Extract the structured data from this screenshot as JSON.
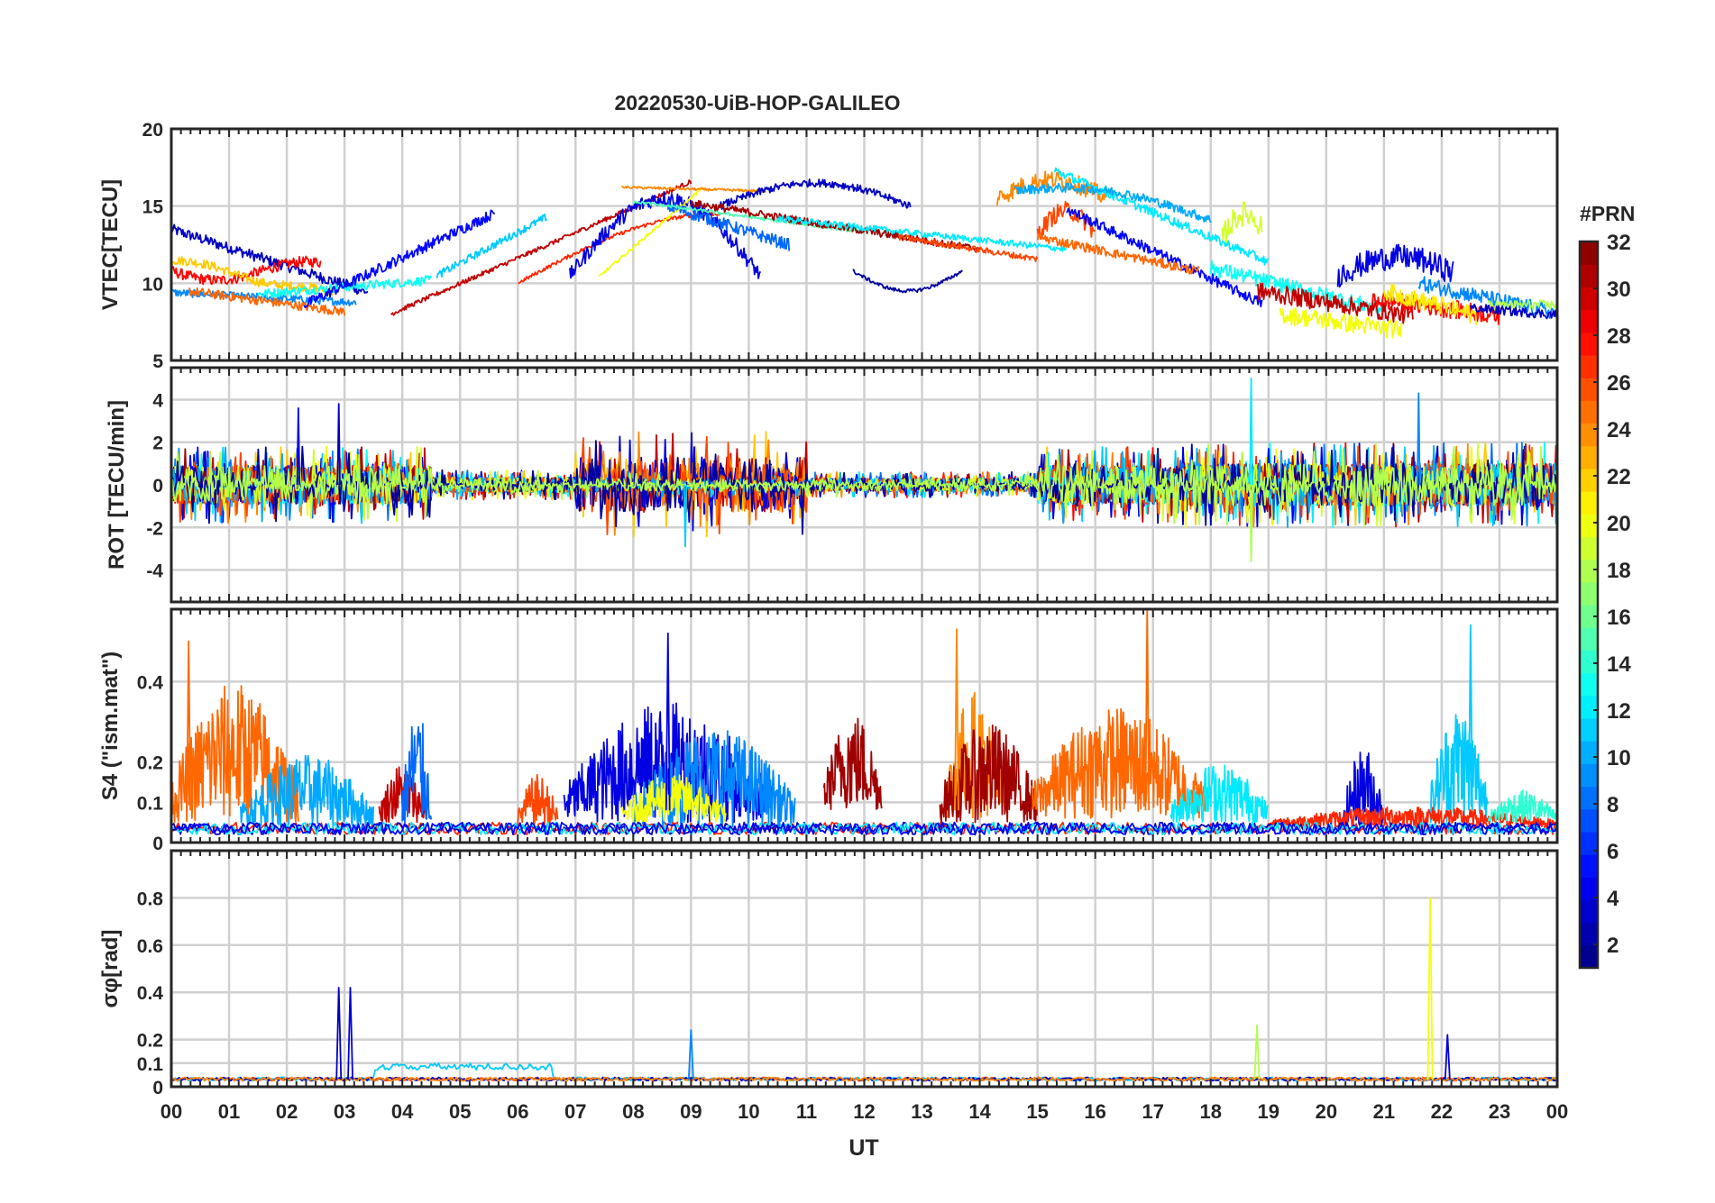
{
  "figure": {
    "title": "20220530-UiB-HOP-GALILEO",
    "xlabel": "UT",
    "xticks": [
      "00",
      "01",
      "02",
      "03",
      "04",
      "05",
      "06",
      "07",
      "08",
      "09",
      "10",
      "11",
      "12",
      "13",
      "14",
      "15",
      "16",
      "17",
      "18",
      "19",
      "20",
      "21",
      "22",
      "23",
      "00"
    ]
  },
  "colorbar": {
    "label": "#PRN",
    "ticks": [
      "2",
      "4",
      "6",
      "8",
      "10",
      "12",
      "14",
      "16",
      "18",
      "20",
      "22",
      "24",
      "26",
      "28",
      "30",
      "32"
    ],
    "range": [
      1,
      32
    ],
    "colormap": "jet"
  },
  "chart_data": [
    {
      "type": "line",
      "name": "vtec",
      "ylabel": "VTEC[TECU]",
      "ylim": [
        5,
        20
      ],
      "yticks": [
        "5",
        "10",
        "15",
        "20"
      ],
      "xlim": [
        0,
        24
      ],
      "description_series": [
        {
          "prn": 4,
          "note": "morning rise 9-14 TECU from 03-06 UT"
        },
        {
          "prn": 30,
          "note": "rise 8 -> 16.5 TECU 04-09 UT"
        },
        {
          "prn": 5,
          "note": "arc 10 -> 16.5 TECU 07-12 UT"
        },
        {
          "prn": 2,
          "note": "dip to 9.5 TECU at 12-13 UT"
        },
        {
          "prn": 12,
          "note": "evening peak 17.5 TECU at 15.5-17 UT"
        },
        {
          "prn": 24,
          "note": "evening peak ~17 TECU 15-16 UT"
        },
        {
          "prn": 20,
          "note": "late evening ~6-12 TECU 19-22 UT"
        }
      ]
    },
    {
      "type": "line",
      "name": "rot",
      "ylabel": "ROT [TECU/min]",
      "ylim": [
        -5.5,
        5.5
      ],
      "yticks": [
        "-4",
        "-2",
        "0",
        "2",
        "4"
      ],
      "xlim": [
        0,
        24
      ],
      "peaks": [
        {
          "t": 2.2,
          "v": 3.6
        },
        {
          "t": 2.9,
          "v": 3.8
        },
        {
          "t": 8.9,
          "v": -2.9
        },
        {
          "t": 18.7,
          "v": 5.0
        },
        {
          "t": 18.7,
          "v": -3.6
        },
        {
          "t": 21.6,
          "v": 4.3
        }
      ]
    },
    {
      "type": "line",
      "name": "s4",
      "ylabel": "S4 (\"ism.mat\")",
      "ylim": [
        0,
        0.58
      ],
      "yticks": [
        "0",
        "0.1",
        "0.2",
        "0.4"
      ],
      "xlim": [
        0,
        24
      ],
      "peaks": [
        {
          "t": 0.3,
          "v": 0.5
        },
        {
          "t": 8.6,
          "v": 0.52
        },
        {
          "t": 13.6,
          "v": 0.53
        },
        {
          "t": 16.9,
          "v": 0.58
        },
        {
          "t": 22.5,
          "v": 0.54
        }
      ]
    },
    {
      "type": "line",
      "name": "sigma_phi",
      "ylabel": "σφ[rad]",
      "ylim": [
        0,
        1.0
      ],
      "yticks": [
        "0",
        "0.1",
        "0.2",
        "0.4",
        "0.6",
        "0.8"
      ],
      "xlim": [
        0,
        24
      ],
      "peaks": [
        {
          "t": 2.9,
          "v": 0.42
        },
        {
          "t": 3.1,
          "v": 0.42
        },
        {
          "t": 9.0,
          "v": 0.24
        },
        {
          "t": 18.8,
          "v": 0.26
        },
        {
          "t": 21.8,
          "v": 0.8
        },
        {
          "t": 22.1,
          "v": 0.22
        }
      ]
    }
  ]
}
